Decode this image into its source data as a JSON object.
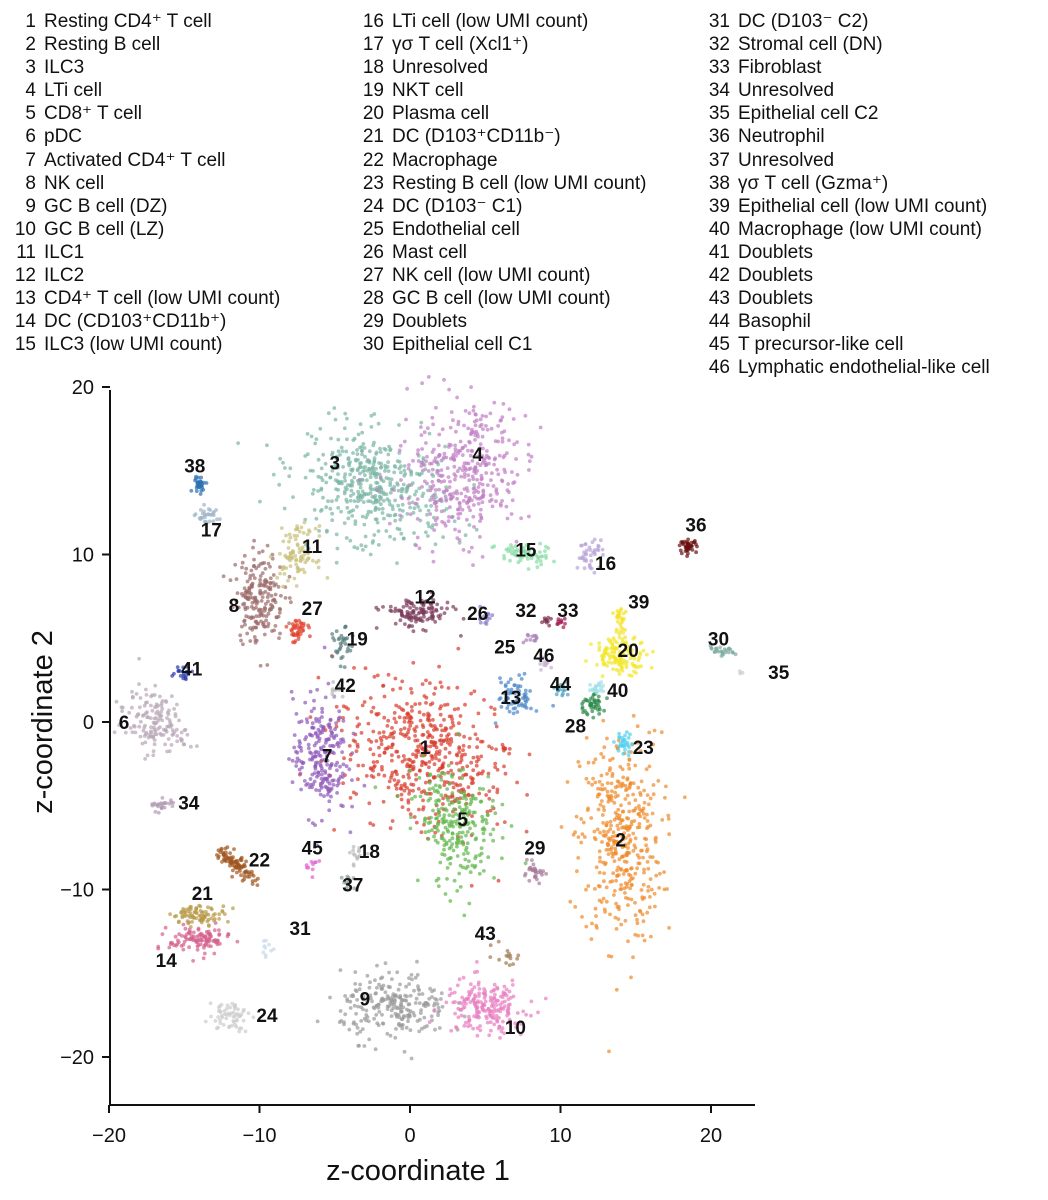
{
  "chart_data": {
    "type": "scatter",
    "title": "",
    "xlabel": "z-coordinate 1",
    "ylabel": "z-coordinate 2",
    "xlim": [
      -20,
      22
    ],
    "ylim": [
      -23,
      20
    ],
    "xticks": [
      "−20",
      "−10",
      "0",
      "10",
      "20"
    ],
    "yticks": [
      "20",
      "10",
      "0",
      "−10",
      "−20"
    ],
    "legend_columns": [
      [
        {
          "num": "1",
          "text": "Resting CD4⁺ T cell"
        },
        {
          "num": "2",
          "text": "Resting B cell"
        },
        {
          "num": "3",
          "text": "ILC3"
        },
        {
          "num": "4",
          "text": "LTi cell"
        },
        {
          "num": "5",
          "text": "CD8⁺ T cell"
        },
        {
          "num": "6",
          "text": "pDC"
        },
        {
          "num": "7",
          "text": "Activated CD4⁺ T cell"
        },
        {
          "num": "8",
          "text": "NK cell"
        },
        {
          "num": "9",
          "text": "GC B cell (DZ)"
        },
        {
          "num": "10",
          "text": "GC B cell (LZ)"
        },
        {
          "num": "11",
          "text": "ILC1"
        },
        {
          "num": "12",
          "text": "ILC2"
        },
        {
          "num": "13",
          "text": "CD4⁺ T cell (low UMI count)"
        },
        {
          "num": "14",
          "text": "DC (CD103⁺CD11b⁺)"
        },
        {
          "num": "15",
          "text": "ILC3 (low UMI count)"
        }
      ],
      [
        {
          "num": "16",
          "text": "LTi cell (low UMI count)"
        },
        {
          "num": "17",
          "text": "γσ T cell (Xcl1⁺)"
        },
        {
          "num": "18",
          "text": "Unresolved"
        },
        {
          "num": "19",
          "text": "NKT cell"
        },
        {
          "num": "20",
          "text": "Plasma cell"
        },
        {
          "num": "21",
          "text": "DC (D103⁺CD11b⁻)"
        },
        {
          "num": "22",
          "text": "Macrophage"
        },
        {
          "num": "23",
          "text": "Resting B cell (low UMI count)"
        },
        {
          "num": "24",
          "text": "DC (D103⁻ C1)"
        },
        {
          "num": "25",
          "text": "Endothelial cell"
        },
        {
          "num": "26",
          "text": "Mast cell"
        },
        {
          "num": "27",
          "text": "NK cell (low UMI count)"
        },
        {
          "num": "28",
          "text": "GC B cell (low UMI count)"
        },
        {
          "num": "29",
          "text": "Doublets"
        },
        {
          "num": "30",
          "text": "Epithelial cell C1"
        }
      ],
      [
        {
          "num": "31",
          "text": "DC (D103⁻ C2)"
        },
        {
          "num": "32",
          "text": "Stromal cell (DN)"
        },
        {
          "num": "33",
          "text": "Fibroblast"
        },
        {
          "num": "34",
          "text": "Unresolved"
        },
        {
          "num": "35",
          "text": "Epithelial cell C2"
        },
        {
          "num": "36",
          "text": "Neutrophil"
        },
        {
          "num": "37",
          "text": "Unresolved"
        },
        {
          "num": "38",
          "text": "γσ T cell (Gzma⁺)"
        },
        {
          "num": "39",
          "text": "Epithelial cell (low UMI count)"
        },
        {
          "num": "40",
          "text": "Macrophage (low UMI count)"
        },
        {
          "num": "41",
          "text": "Doublets"
        },
        {
          "num": "42",
          "text": "Doublets"
        },
        {
          "num": "43",
          "text": "Doublets"
        },
        {
          "num": "44",
          "text": "Basophil"
        },
        {
          "num": "45",
          "text": "T precursor-like cell"
        },
        {
          "num": "46",
          "text": "Lymphatic endothelial-like cell"
        }
      ]
    ],
    "clusters": [
      {
        "id": "1",
        "cx": 1.0,
        "cy": -2.0,
        "rx": 6.5,
        "ry": 4.5,
        "rot": -30,
        "color": "#d93a2b",
        "n": 520,
        "lx": 1,
        "ly": -1.5
      },
      {
        "id": "2",
        "cx": 14.0,
        "cy": -7.0,
        "rx": 3.0,
        "ry": 7.0,
        "rot": 0,
        "color": "#ee8a2a",
        "n": 420,
        "lx": 14,
        "ly": -7
      },
      {
        "id": "3",
        "cx": -2.5,
        "cy": 14.0,
        "rx": 5.5,
        "ry": 3.5,
        "rot": -15,
        "color": "#7bb5a4",
        "n": 450,
        "lx": -5,
        "ly": 15.5
      },
      {
        "id": "4",
        "cx": 3.5,
        "cy": 15.0,
        "rx": 4.0,
        "ry": 5.0,
        "rot": -25,
        "color": "#c07ec4",
        "n": 380,
        "lx": 4.5,
        "ly": 16
      },
      {
        "id": "5",
        "cx": 3.0,
        "cy": -6.0,
        "rx": 2.8,
        "ry": 4.0,
        "rot": 20,
        "color": "#5fb64b",
        "n": 250,
        "lx": 3.5,
        "ly": -5.8
      },
      {
        "id": "6",
        "cx": -17.0,
        "cy": 0.0,
        "rx": 2.5,
        "ry": 2.0,
        "rot": -20,
        "color": "#b8a6b6",
        "n": 150,
        "lx": -19,
        "ly": 0
      },
      {
        "id": "7",
        "cx": -6.0,
        "cy": -2.0,
        "rx": 2.0,
        "ry": 4.0,
        "rot": 0,
        "color": "#8e5ab9",
        "n": 230,
        "lx": -5.5,
        "ly": -2
      },
      {
        "id": "8",
        "cx": -10.0,
        "cy": 7.5,
        "rx": 1.8,
        "ry": 3.0,
        "rot": 0,
        "color": "#9b6a6a",
        "n": 200,
        "lx": -11.7,
        "ly": 7
      },
      {
        "id": "9",
        "cx": -1.0,
        "cy": -17.0,
        "rx": 4.0,
        "ry": 2.2,
        "rot": 0,
        "color": "#9a9a9a",
        "n": 240,
        "lx": -3,
        "ly": -16.5
      },
      {
        "id": "10",
        "cx": 5.0,
        "cy": -17.0,
        "rx": 3.0,
        "ry": 1.8,
        "rot": 0,
        "color": "#e87fc0",
        "n": 200,
        "lx": 7,
        "ly": -18.2
      },
      {
        "id": "11",
        "cx": -7.5,
        "cy": 10.0,
        "rx": 1.4,
        "ry": 1.8,
        "rot": 0,
        "color": "#c9c07b",
        "n": 90,
        "lx": -6.5,
        "ly": 10.5
      },
      {
        "id": "12",
        "cx": 0.5,
        "cy": 6.5,
        "rx": 2.5,
        "ry": 1.0,
        "rot": 0,
        "color": "#7a3a5a",
        "n": 120,
        "lx": 1,
        "ly": 7.5
      },
      {
        "id": "13",
        "cx": 7.0,
        "cy": 1.5,
        "rx": 1.3,
        "ry": 1.3,
        "rot": 0,
        "color": "#4a86c8",
        "n": 70,
        "lx": 6.7,
        "ly": 1.5
      },
      {
        "id": "14",
        "cx": -14.0,
        "cy": -13.0,
        "rx": 2.2,
        "ry": 1.0,
        "rot": 0,
        "color": "#d4608b",
        "n": 110,
        "lx": -16.2,
        "ly": -14.2
      },
      {
        "id": "15",
        "cx": 7.5,
        "cy": 10.0,
        "rx": 2.0,
        "ry": 0.8,
        "rot": 0,
        "color": "#86dba3",
        "n": 60,
        "lx": 7.7,
        "ly": 10.3
      },
      {
        "id": "16",
        "cx": 12.0,
        "cy": 10.0,
        "rx": 1.0,
        "ry": 1.0,
        "rot": 0,
        "color": "#b8a2d8",
        "n": 40,
        "lx": 13,
        "ly": 9.5
      },
      {
        "id": "17",
        "cx": -13.5,
        "cy": 12.3,
        "rx": 0.8,
        "ry": 0.6,
        "rot": 0,
        "color": "#9fb4c6",
        "n": 30,
        "lx": -13.2,
        "ly": 11.5
      },
      {
        "id": "18",
        "cx": -3.5,
        "cy": -8.0,
        "rx": 0.6,
        "ry": 0.6,
        "rot": 0,
        "color": "#bbbbbb",
        "n": 15,
        "lx": -2.7,
        "ly": -7.7
      },
      {
        "id": "19",
        "cx": -4.5,
        "cy": 4.5,
        "rx": 0.7,
        "ry": 1.2,
        "rot": 0,
        "color": "#5a7f7f",
        "n": 35,
        "lx": -3.5,
        "ly": 5
      },
      {
        "id": "20",
        "cx": 14.0,
        "cy": 4.0,
        "rx": 2.0,
        "ry": 1.2,
        "rot": 0,
        "color": "#f2e72a",
        "n": 130,
        "lx": 14.5,
        "ly": 4.3
      },
      {
        "id": "21",
        "cx": -14.0,
        "cy": -11.5,
        "rx": 2.0,
        "ry": 0.6,
        "rot": 0,
        "color": "#b89a48",
        "n": 80,
        "lx": -13.8,
        "ly": -10.2
      },
      {
        "id": "22",
        "cx": -11.5,
        "cy": -8.5,
        "rx": 1.8,
        "ry": 0.6,
        "rot": -35,
        "color": "#a0561e",
        "n": 90,
        "lx": -10,
        "ly": -8.2
      },
      {
        "id": "23",
        "cx": 14.2,
        "cy": -1.3,
        "rx": 0.6,
        "ry": 0.8,
        "rot": 0,
        "color": "#4fd0f0",
        "n": 30,
        "lx": 15.5,
        "ly": -1.5
      },
      {
        "id": "24",
        "cx": -12.0,
        "cy": -17.5,
        "rx": 1.5,
        "ry": 1.0,
        "rot": 0,
        "color": "#cccccc",
        "n": 60,
        "lx": -9.5,
        "ly": -17.5
      },
      {
        "id": "25",
        "cx": 8.0,
        "cy": 5.0,
        "rx": 0.5,
        "ry": 0.5,
        "rot": 0,
        "color": "#a67fb7",
        "n": 12,
        "lx": 6.3,
        "ly": 4.5
      },
      {
        "id": "26",
        "cx": 5.0,
        "cy": 6.2,
        "rx": 0.6,
        "ry": 0.5,
        "rot": 0,
        "color": "#8a7ac8",
        "n": 15,
        "lx": 4.5,
        "ly": 6.5
      },
      {
        "id": "27",
        "cx": -7.5,
        "cy": 5.5,
        "rx": 0.8,
        "ry": 0.8,
        "rot": 0,
        "color": "#e2412e",
        "n": 40,
        "lx": -6.5,
        "ly": 6.8
      },
      {
        "id": "28",
        "cx": 12.0,
        "cy": 1.0,
        "rx": 1.0,
        "ry": 0.7,
        "rot": 0,
        "color": "#2e8a4a",
        "n": 45,
        "lx": 11,
        "ly": -0.2
      },
      {
        "id": "29",
        "cx": 8.3,
        "cy": -9.0,
        "rx": 0.8,
        "ry": 0.6,
        "rot": 0,
        "color": "#a87a9a",
        "n": 30,
        "lx": 8.3,
        "ly": -7.5
      },
      {
        "id": "30",
        "cx": 20.5,
        "cy": 4.2,
        "rx": 1.2,
        "ry": 0.3,
        "rot": 0,
        "color": "#7aa9a0",
        "n": 25,
        "lx": 20.5,
        "ly": 5
      },
      {
        "id": "31",
        "cx": -9.5,
        "cy": -13.5,
        "rx": 0.5,
        "ry": 0.5,
        "rot": 0,
        "color": "#c8d8e8",
        "n": 10,
        "lx": -7.3,
        "ly": -12.3
      },
      {
        "id": "32",
        "cx": 9.0,
        "cy": 6.0,
        "rx": 0.4,
        "ry": 0.3,
        "rot": 0,
        "color": "#7a2f4f",
        "n": 10,
        "lx": 7.7,
        "ly": 6.7
      },
      {
        "id": "33",
        "cx": 10.0,
        "cy": 6.0,
        "rx": 0.4,
        "ry": 0.3,
        "rot": 0,
        "color": "#a01850",
        "n": 10,
        "lx": 10.5,
        "ly": 6.7
      },
      {
        "id": "34",
        "cx": -16.5,
        "cy": -5.0,
        "rx": 1.0,
        "ry": 0.5,
        "rot": 0,
        "color": "#b09ab4",
        "n": 25,
        "lx": -14.7,
        "ly": -4.8
      },
      {
        "id": "35",
        "cx": 22.0,
        "cy": 3.0,
        "rx": 0.3,
        "ry": 0.3,
        "rot": 0,
        "color": "#cccccc",
        "n": 3,
        "lx": 24.5,
        "ly": 3
      },
      {
        "id": "36",
        "cx": 18.5,
        "cy": 10.5,
        "rx": 0.6,
        "ry": 0.4,
        "rot": 0,
        "color": "#6a1010",
        "n": 40,
        "lx": 19,
        "ly": 11.8
      },
      {
        "id": "37",
        "cx": -4.0,
        "cy": -9.5,
        "rx": 0.5,
        "ry": 0.6,
        "rot": 0,
        "color": "#8aa0a0",
        "n": 12,
        "lx": -3.8,
        "ly": -9.7
      },
      {
        "id": "38",
        "cx": -14.0,
        "cy": 14.2,
        "rx": 0.5,
        "ry": 0.5,
        "rot": 0,
        "color": "#2a6fb0",
        "n": 30,
        "lx": -14.3,
        "ly": 15.3
      },
      {
        "id": "39",
        "cx": 14.0,
        "cy": 6.0,
        "rx": 0.6,
        "ry": 1.3,
        "rot": 0,
        "color": "#f4e22a",
        "n": 30,
        "lx": 15.2,
        "ly": 7.2
      },
      {
        "id": "40",
        "cx": 12.5,
        "cy": 2.0,
        "rx": 0.7,
        "ry": 0.5,
        "rot": 0,
        "color": "#9fe0e8",
        "n": 20,
        "lx": 13.8,
        "ly": 1.9
      },
      {
        "id": "41",
        "cx": -15.0,
        "cy": 3.0,
        "rx": 0.7,
        "ry": 0.5,
        "rot": 0,
        "color": "#2a3bb0",
        "n": 20,
        "lx": -14.5,
        "ly": 3.2
      },
      {
        "id": "42",
        "cx": -5.0,
        "cy": 2.0,
        "rx": 0.6,
        "ry": 0.6,
        "rot": 0,
        "color": "#b8b8b8",
        "n": 12,
        "lx": -4.3,
        "ly": 2.2
      },
      {
        "id": "43",
        "cx": 6.5,
        "cy": -14.0,
        "rx": 1.2,
        "ry": 0.7,
        "rot": 0,
        "color": "#a07a50",
        "n": 15,
        "lx": 5,
        "ly": -12.6
      },
      {
        "id": "44",
        "cx": 10.0,
        "cy": 2.0,
        "rx": 0.6,
        "ry": 0.5,
        "rot": 0,
        "color": "#4aa0c0",
        "n": 15,
        "lx": 10,
        "ly": 2.3
      },
      {
        "id": "45",
        "cx": -6.5,
        "cy": -8.5,
        "rx": 0.5,
        "ry": 0.5,
        "rot": 0,
        "color": "#e060d0",
        "n": 10,
        "lx": -6.5,
        "ly": -7.5
      },
      {
        "id": "46",
        "cx": 9.0,
        "cy": 3.5,
        "rx": 0.5,
        "ry": 0.5,
        "rot": 0,
        "color": "#c8b0d0",
        "n": 12,
        "lx": 8.9,
        "ly": 4
      }
    ]
  }
}
